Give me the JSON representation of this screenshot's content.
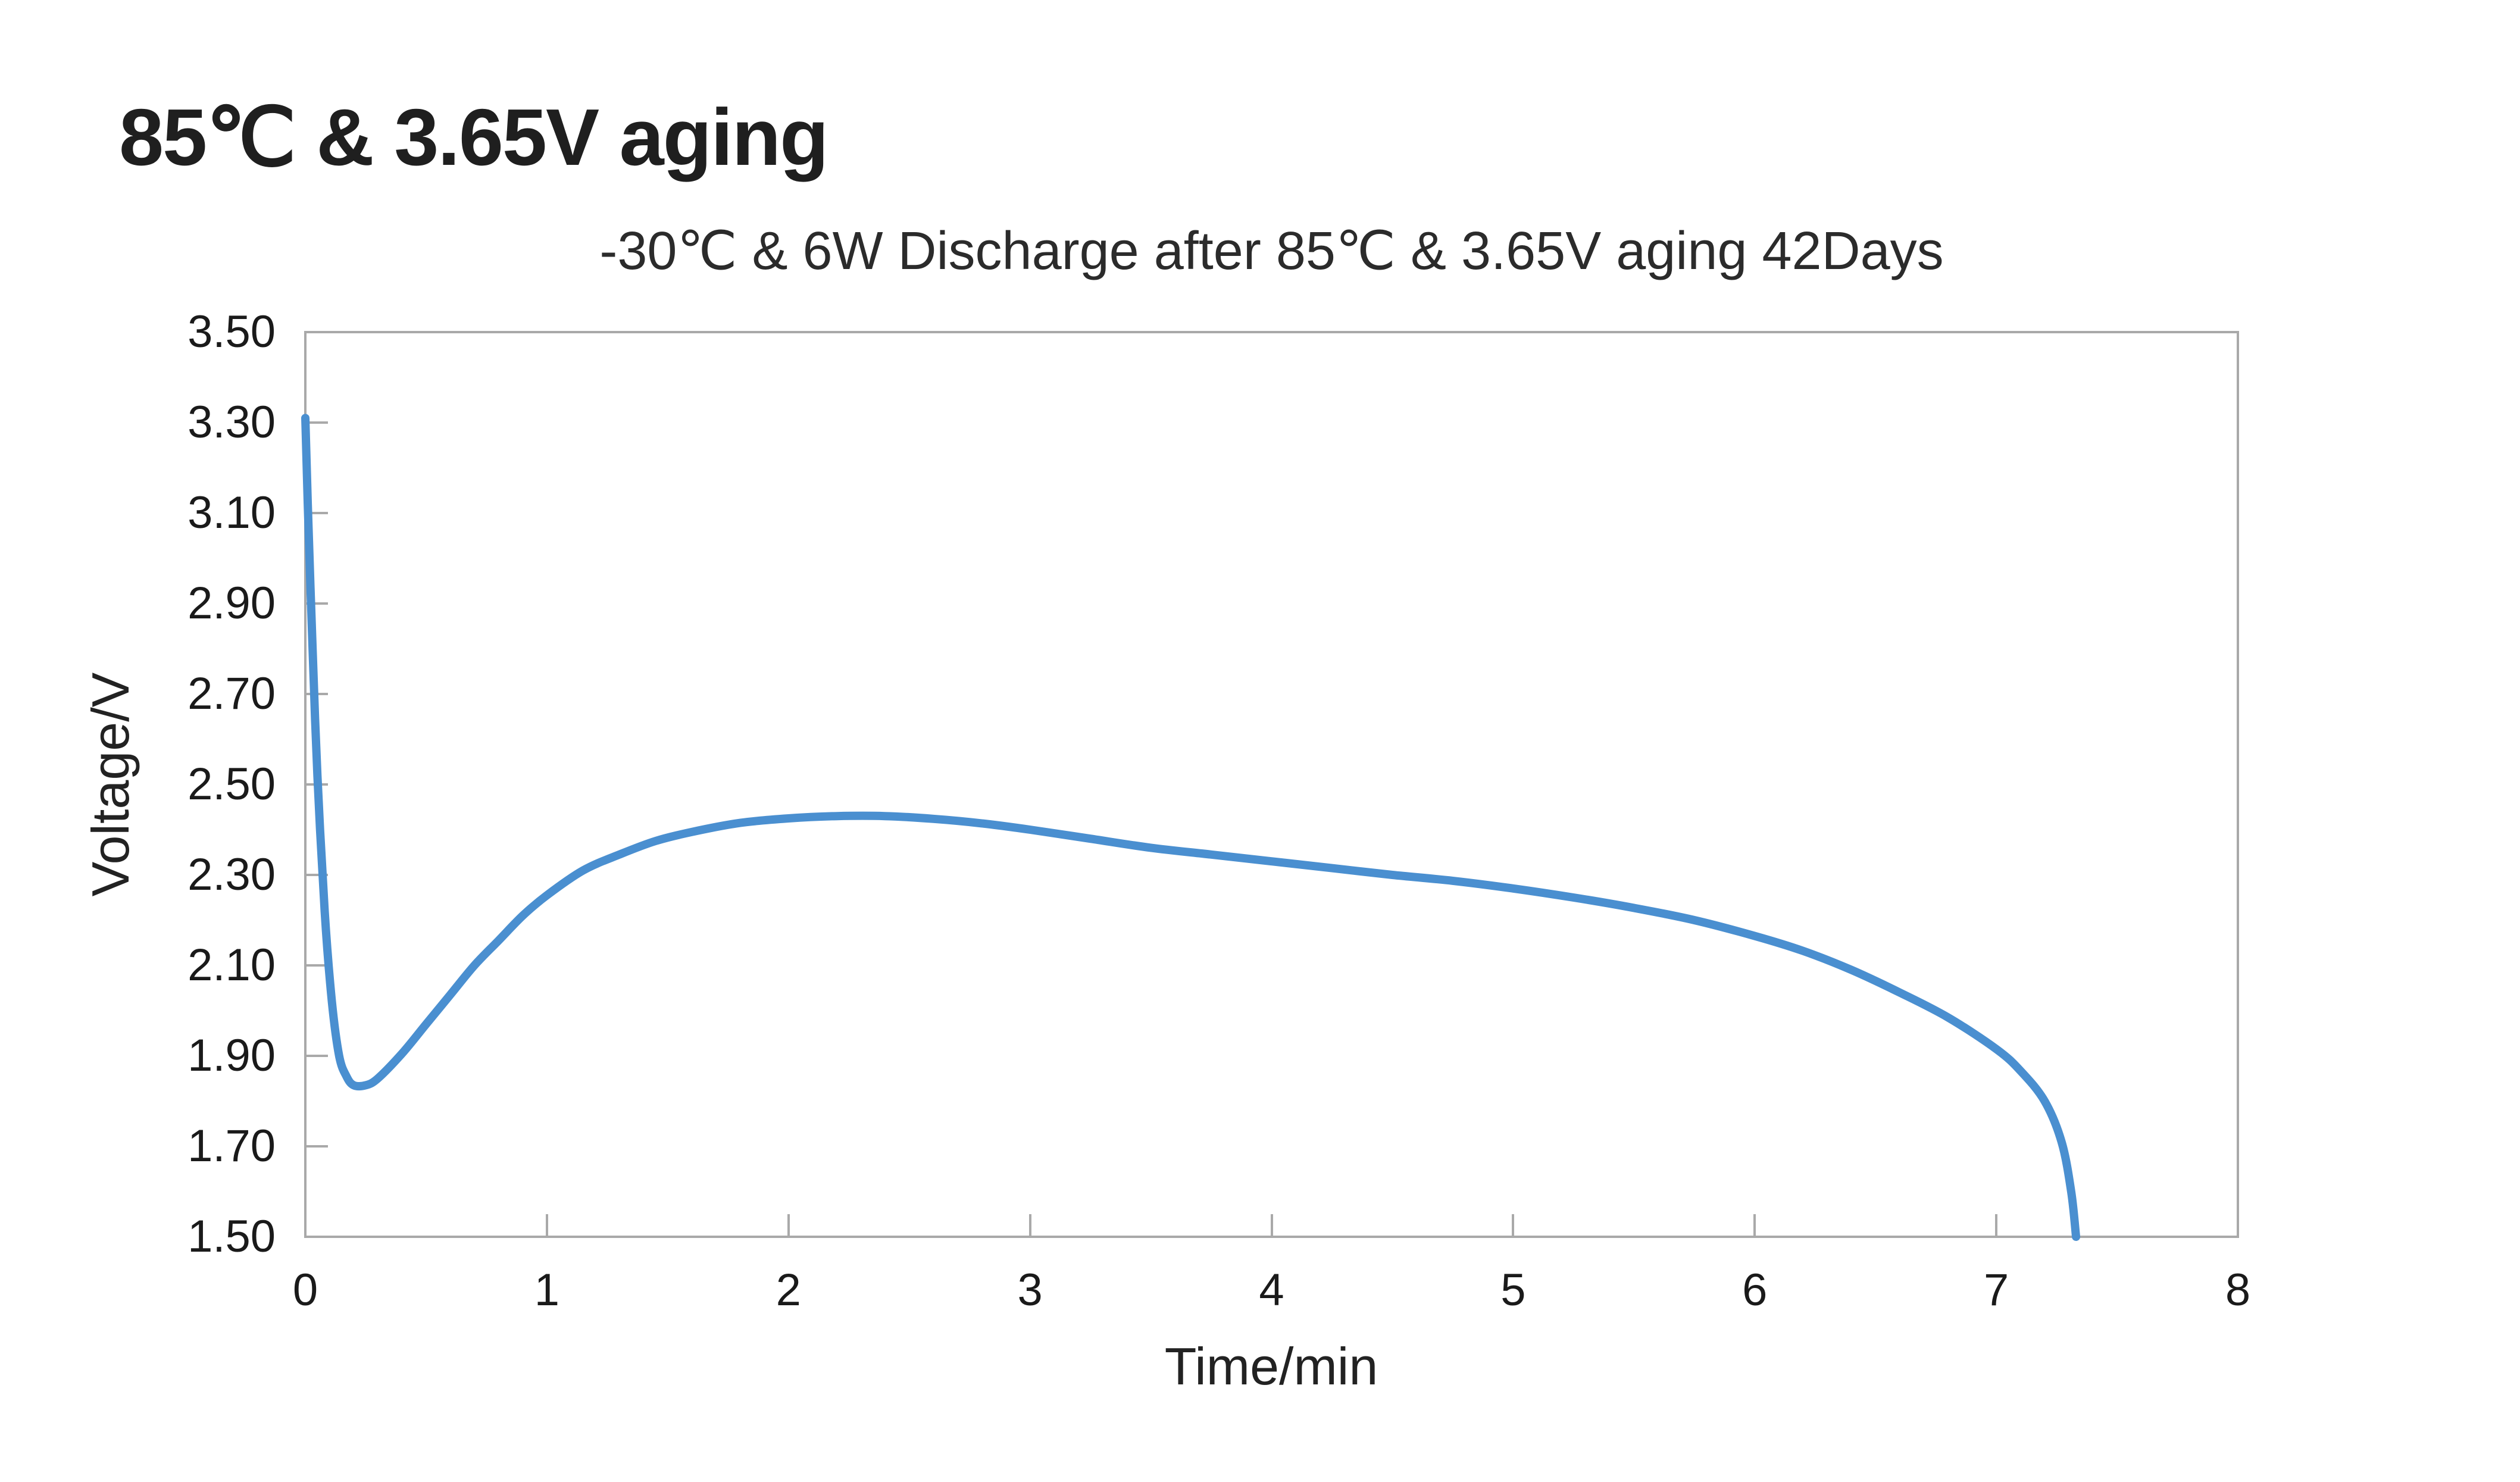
{
  "page": {
    "background": "#ffffff"
  },
  "header": {
    "title": "85℃ & 3.65V aging"
  },
  "chart": {
    "subtitle": "-30℃ & 6W Discharge after 85℃ & 3.65V aging 42Days",
    "x_axis_title": "Time/min",
    "y_axis_title": "Voltage/V",
    "colors": {
      "line": "#4a8fd0",
      "axis": "#a9a9a9",
      "title_text": "#1f1f1f",
      "subtitle_text": "#2b2b2b",
      "tick_label_text": "#1a1a1a"
    }
  },
  "chart_data": {
    "type": "line",
    "title": "-30℃ & 6W Discharge after 85℃ & 3.65V aging 42Days",
    "xlabel": "Time/min",
    "ylabel": "Voltage/V",
    "xlim": [
      0,
      8
    ],
    "ylim": [
      1.5,
      3.5
    ],
    "x_tick_labels": [
      "0",
      "1",
      "2",
      "3",
      "4",
      "5",
      "6",
      "7",
      "8"
    ],
    "y_tick_labels": [
      "3.50",
      "3.30",
      "3.10",
      "2.90",
      "2.70",
      "2.50",
      "2.30",
      "2.10",
      "1.90",
      "1.70",
      "1.50"
    ],
    "grid": false,
    "legend": false,
    "series": [
      {
        "name": "discharge-voltage",
        "color": "#4a8fd0",
        "points": [
          [
            0.0,
            3.31
          ],
          [
            0.01,
            3.12
          ],
          [
            0.03,
            2.8
          ],
          [
            0.05,
            2.52
          ],
          [
            0.08,
            2.22
          ],
          [
            0.11,
            2.02
          ],
          [
            0.14,
            1.9
          ],
          [
            0.17,
            1.855
          ],
          [
            0.2,
            1.835
          ],
          [
            0.25,
            1.835
          ],
          [
            0.3,
            1.85
          ],
          [
            0.4,
            1.905
          ],
          [
            0.5,
            1.97
          ],
          [
            0.6,
            2.035
          ],
          [
            0.7,
            2.1
          ],
          [
            0.8,
            2.155
          ],
          [
            0.9,
            2.21
          ],
          [
            1.0,
            2.255
          ],
          [
            1.15,
            2.31
          ],
          [
            1.3,
            2.345
          ],
          [
            1.45,
            2.375
          ],
          [
            1.6,
            2.395
          ],
          [
            1.8,
            2.415
          ],
          [
            2.0,
            2.425
          ],
          [
            2.2,
            2.43
          ],
          [
            2.4,
            2.43
          ],
          [
            2.6,
            2.424
          ],
          [
            2.8,
            2.414
          ],
          [
            3.0,
            2.4
          ],
          [
            3.25,
            2.38
          ],
          [
            3.5,
            2.36
          ],
          [
            3.75,
            2.345
          ],
          [
            4.0,
            2.33
          ],
          [
            4.25,
            2.315
          ],
          [
            4.5,
            2.3
          ],
          [
            4.75,
            2.287
          ],
          [
            5.0,
            2.27
          ],
          [
            5.25,
            2.25
          ],
          [
            5.5,
            2.227
          ],
          [
            5.75,
            2.2
          ],
          [
            6.0,
            2.165
          ],
          [
            6.2,
            2.132
          ],
          [
            6.4,
            2.09
          ],
          [
            6.6,
            2.04
          ],
          [
            6.8,
            1.985
          ],
          [
            7.0,
            1.915
          ],
          [
            7.1,
            1.867
          ],
          [
            7.2,
            1.8
          ],
          [
            7.27,
            1.71
          ],
          [
            7.31,
            1.6
          ],
          [
            7.33,
            1.5
          ]
        ]
      }
    ]
  }
}
